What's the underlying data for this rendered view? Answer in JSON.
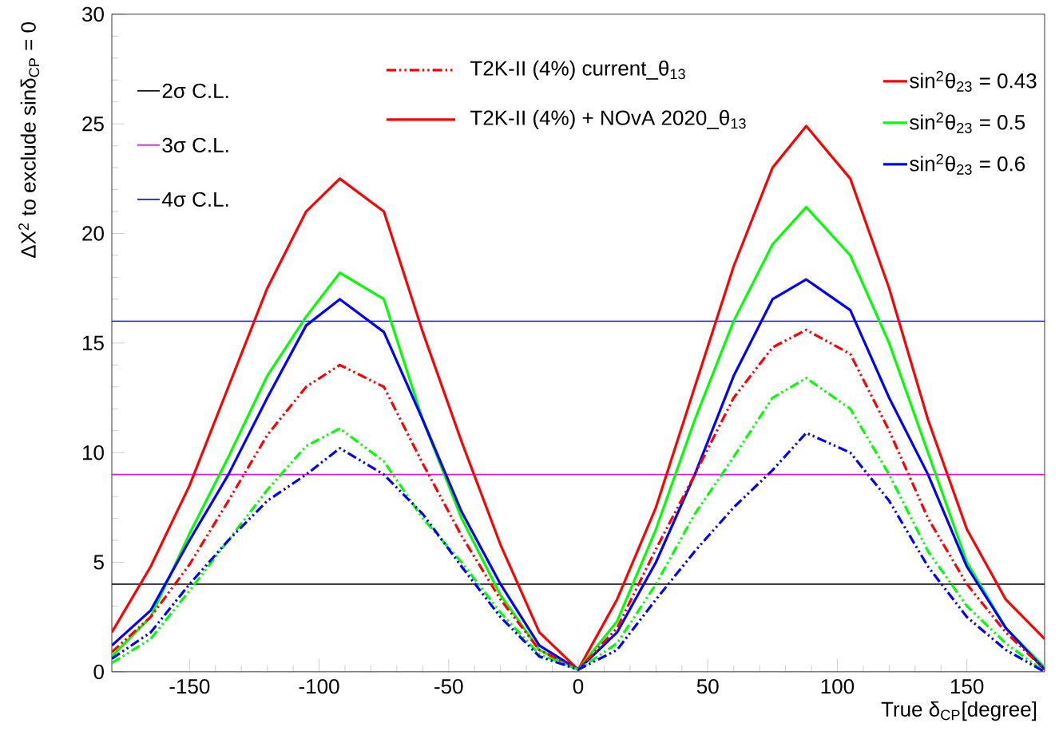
{
  "chart_data": {
    "type": "line",
    "xlabel": "True δ$_{CP}$[degree]",
    "ylabel": "ΔΧ$^{2}$ to exclude sinδ$_{CP}$ = 0",
    "xlim": [
      -180,
      180
    ],
    "ylim": [
      0,
      30
    ],
    "xticks": [
      -150,
      -100,
      -50,
      0,
      50,
      100,
      150
    ],
    "yticks": [
      0,
      5,
      10,
      15,
      20,
      25,
      30
    ],
    "grid": false,
    "legend": "top",
    "series": [
      {
        "color": "#ff0000",
        "line_style": "solid",
        "x": [
          -180,
          -165,
          -150,
          -135,
          -120,
          -105,
          -92,
          -75,
          -60,
          -45,
          -30,
          -15,
          0,
          15,
          30,
          45,
          60,
          75,
          88,
          105,
          120,
          135,
          150,
          165,
          180
        ],
        "values": [
          1.8,
          4.8,
          8.5,
          13,
          17.5,
          21,
          22.5,
          21,
          15.5,
          10.5,
          5.8,
          1.8,
          0.1,
          3.3,
          7.5,
          13,
          18.5,
          23,
          24.9,
          22.5,
          17.5,
          11.5,
          6.5,
          3.3,
          1.5
        ]
      },
      {
        "color": "#00ff00",
        "line_style": "solid",
        "x": [
          -180,
          -165,
          -150,
          -135,
          -120,
          -105,
          -92,
          -75,
          -60,
          -45,
          -30,
          -15,
          0,
          15,
          30,
          45,
          60,
          75,
          88,
          105,
          120,
          135,
          150,
          165,
          180
        ],
        "values": [
          0.7,
          2.5,
          6.3,
          9.8,
          13.5,
          16.2,
          18.2,
          17,
          11.5,
          7,
          3.5,
          1,
          0.1,
          2.3,
          6.5,
          11.5,
          16,
          19.5,
          21.2,
          19,
          15,
          10,
          5,
          2,
          0.2
        ]
      },
      {
        "color": "#0000ff",
        "line_style": "solid",
        "x": [
          -180,
          -165,
          -150,
          -135,
          -120,
          -105,
          -92,
          -75,
          -60,
          -45,
          -30,
          -15,
          0,
          15,
          30,
          45,
          60,
          75,
          88,
          105,
          120,
          135,
          150,
          165,
          180
        ],
        "values": [
          1.2,
          2.8,
          6,
          9,
          12.5,
          15.8,
          17,
          15.5,
          11.5,
          7.3,
          4,
          1.2,
          0.1,
          1.8,
          5,
          9,
          13.5,
          17,
          17.9,
          16.5,
          12.5,
          9,
          4.8,
          2,
          0.1
        ]
      },
      {
        "color": "#ff0000",
        "line_style": "dashed",
        "x": [
          -180,
          -165,
          -150,
          -135,
          -120,
          -105,
          -92,
          -75,
          -60,
          -45,
          -30,
          -15,
          0,
          15,
          30,
          45,
          60,
          75,
          88,
          105,
          120,
          135,
          150,
          165,
          180
        ],
        "values": [
          0.9,
          2.5,
          4.9,
          7.8,
          10.8,
          13,
          14,
          13,
          9.5,
          6.2,
          3.3,
          1,
          0.1,
          2,
          5.6,
          9,
          12.5,
          14.8,
          15.6,
          14.5,
          11,
          7,
          4,
          1.8,
          0.1
        ]
      },
      {
        "color": "#00ff00",
        "line_style": "dashed",
        "x": [
          -180,
          -165,
          -150,
          -135,
          -120,
          -105,
          -92,
          -75,
          -60,
          -45,
          -30,
          -15,
          0,
          15,
          30,
          45,
          60,
          75,
          88,
          105,
          120,
          135,
          150,
          165,
          180
        ],
        "values": [
          0.4,
          1.5,
          3.7,
          6,
          8.3,
          10.3,
          11.1,
          9.6,
          7,
          5,
          2.7,
          0.8,
          0.1,
          1.3,
          4,
          7.2,
          9.8,
          12.5,
          13.4,
          12,
          9,
          5.5,
          3,
          1.3,
          0
        ]
      },
      {
        "color": "#0000ff",
        "line_style": "dashed",
        "x": [
          -180,
          -165,
          -150,
          -135,
          -120,
          -105,
          -92,
          -75,
          -60,
          -45,
          -30,
          -15,
          0,
          15,
          30,
          45,
          60,
          75,
          88,
          105,
          120,
          135,
          150,
          165,
          180
        ],
        "values": [
          0.6,
          1.8,
          4,
          6,
          7.8,
          9,
          10.2,
          9,
          7.2,
          4.8,
          2.5,
          0.7,
          0.1,
          1,
          3.3,
          5.5,
          7.5,
          9.2,
          10.9,
          10,
          7.8,
          4.8,
          2.5,
          1,
          0
        ]
      }
    ],
    "ref_lines": [
      {
        "axis": "y",
        "value": 4,
        "label": "2σ C.L.",
        "color": "#000000"
      },
      {
        "axis": "y",
        "value": 9,
        "label": "3σ C.L.",
        "color": "#ff00ff"
      },
      {
        "axis": "y",
        "value": 16,
        "label": "4σ C.L.",
        "color": "#0000ff"
      }
    ],
    "annotations": [
      "T2K-II (4%) current_θ$_{13}$",
      "T2K-II (4%) + NOvA 2020_θ$_{13}$",
      "sin$^{2}$θ$_{23}$ = 0.43",
      "sin$^{2}$θ$_{23}$ = 0.5",
      "sin$^{2}$θ$_{23}$ = 0.6"
    ]
  }
}
